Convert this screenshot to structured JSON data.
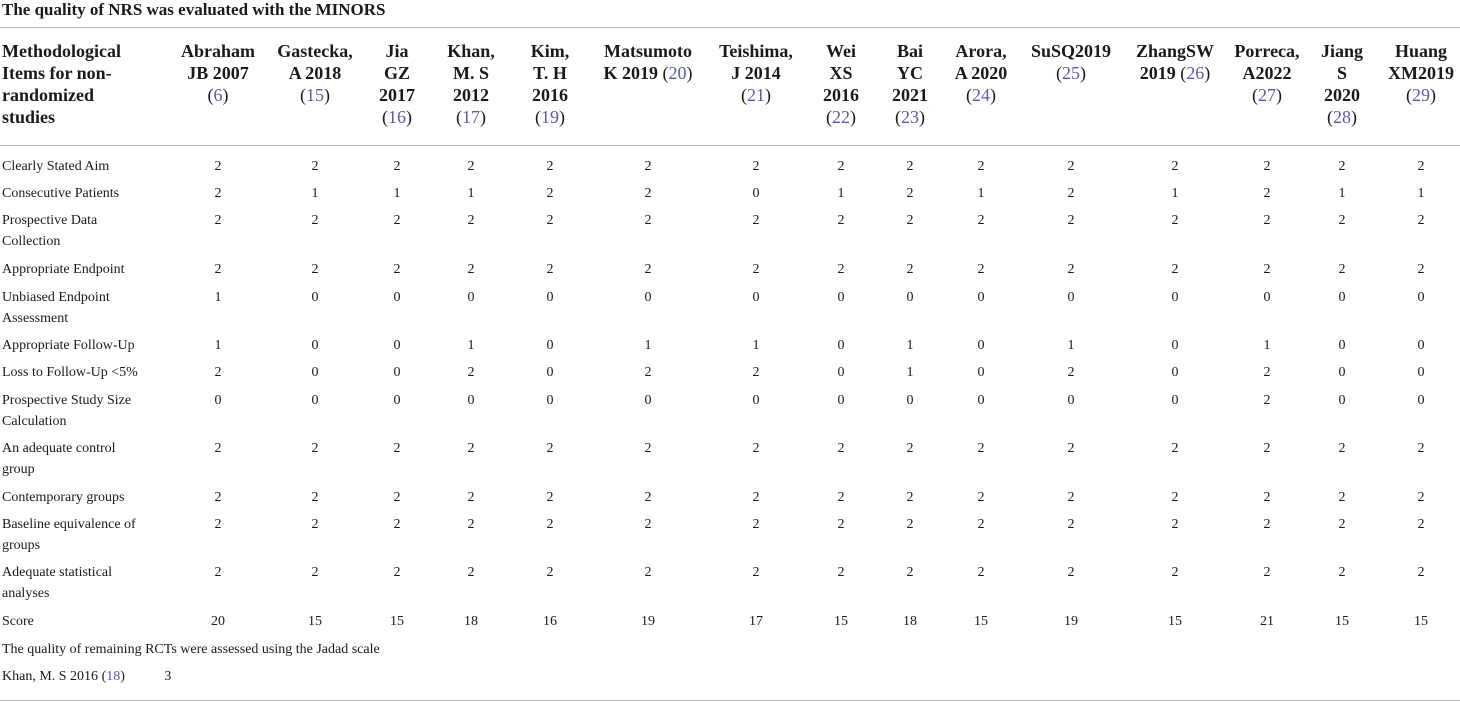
{
  "caption": "The quality of NRS was evaluated with the MINORS",
  "header_first": [
    "Methodological",
    "Items for non-",
    "randomized",
    "studies"
  ],
  "columns": [
    {
      "lines": [
        "Abraham",
        "JB 2007"
      ],
      "ref": "6"
    },
    {
      "lines": [
        "Gastecka,",
        "A 2018"
      ],
      "ref": "15"
    },
    {
      "lines": [
        "Jia",
        "GZ",
        "2017"
      ],
      "ref": "16"
    },
    {
      "lines": [
        "Khan,",
        "M. S",
        "2012"
      ],
      "ref": "17"
    },
    {
      "lines": [
        "Kim,",
        "T. H",
        "2016"
      ],
      "ref": "19"
    },
    {
      "lines": [
        "Matsumoto",
        "K 2019"
      ],
      "ref": "20",
      "ref_inline": true
    },
    {
      "lines": [
        "Teishima,",
        "J 2014"
      ],
      "ref": "21"
    },
    {
      "lines": [
        "Wei",
        "XS",
        "2016"
      ],
      "ref": "22"
    },
    {
      "lines": [
        "Bai",
        "YC",
        "2021"
      ],
      "ref": "23"
    },
    {
      "lines": [
        "Arora,",
        "A 2020"
      ],
      "ref": "24"
    },
    {
      "lines": [
        "SuSQ2019"
      ],
      "ref": "25"
    },
    {
      "lines": [
        "ZhangSW",
        "2019"
      ],
      "ref": "26",
      "ref_inline": true
    },
    {
      "lines": [
        "Porreca,",
        "A2022"
      ],
      "ref": "27"
    },
    {
      "lines": [
        "Jiang",
        "S",
        "2020"
      ],
      "ref": "28"
    },
    {
      "lines": [
        "Huang",
        "XM2019"
      ],
      "ref": "29"
    }
  ],
  "rows": [
    {
      "label": [
        "Clearly Stated Aim"
      ],
      "values": [
        2,
        2,
        2,
        2,
        2,
        2,
        2,
        2,
        2,
        2,
        2,
        2,
        2,
        2,
        2
      ]
    },
    {
      "label": [
        "Consecutive Patients"
      ],
      "values": [
        2,
        1,
        1,
        1,
        2,
        2,
        0,
        1,
        2,
        1,
        2,
        1,
        2,
        1,
        1
      ]
    },
    {
      "label": [
        "Prospective Data",
        "Collection"
      ],
      "values": [
        2,
        2,
        2,
        2,
        2,
        2,
        2,
        2,
        2,
        2,
        2,
        2,
        2,
        2,
        2
      ]
    },
    {
      "label": [
        "Appropriate Endpoint"
      ],
      "values": [
        2,
        2,
        2,
        2,
        2,
        2,
        2,
        2,
        2,
        2,
        2,
        2,
        2,
        2,
        2
      ]
    },
    {
      "label": [
        "Unbiased Endpoint",
        "Assessment"
      ],
      "values": [
        1,
        0,
        0,
        0,
        0,
        0,
        0,
        0,
        0,
        0,
        0,
        0,
        0,
        0,
        0
      ]
    },
    {
      "label": [
        "Appropriate Follow-Up"
      ],
      "values": [
        1,
        0,
        0,
        1,
        0,
        1,
        1,
        0,
        1,
        0,
        1,
        0,
        1,
        0,
        0
      ]
    },
    {
      "label": [
        "Loss to Follow-Up <5%"
      ],
      "values": [
        2,
        0,
        0,
        2,
        0,
        2,
        2,
        0,
        1,
        0,
        2,
        0,
        2,
        0,
        0
      ]
    },
    {
      "label": [
        "Prospective Study Size",
        "Calculation"
      ],
      "values": [
        0,
        0,
        0,
        0,
        0,
        0,
        0,
        0,
        0,
        0,
        0,
        0,
        2,
        0,
        0
      ]
    },
    {
      "label": [
        "An adequate control",
        "group"
      ],
      "values": [
        2,
        2,
        2,
        2,
        2,
        2,
        2,
        2,
        2,
        2,
        2,
        2,
        2,
        2,
        2
      ]
    },
    {
      "label": [
        "Contemporary groups"
      ],
      "values": [
        2,
        2,
        2,
        2,
        2,
        2,
        2,
        2,
        2,
        2,
        2,
        2,
        2,
        2,
        2
      ]
    },
    {
      "label": [
        "Baseline equivalence of",
        "groups"
      ],
      "values": [
        2,
        2,
        2,
        2,
        2,
        2,
        2,
        2,
        2,
        2,
        2,
        2,
        2,
        2,
        2
      ]
    },
    {
      "label": [
        "Adequate statistical",
        "analyses"
      ],
      "values": [
        2,
        2,
        2,
        2,
        2,
        2,
        2,
        2,
        2,
        2,
        2,
        2,
        2,
        2,
        2
      ]
    },
    {
      "label": [
        "Score"
      ],
      "values": [
        20,
        15,
        15,
        18,
        16,
        19,
        17,
        15,
        18,
        15,
        19,
        15,
        21,
        15,
        15
      ]
    }
  ],
  "jadad_note": "The quality of remaining RCTs were assessed using the Jadad scale",
  "jadad_row": {
    "label": "Khan, M. S 2016",
    "ref": "18",
    "value": "3"
  }
}
